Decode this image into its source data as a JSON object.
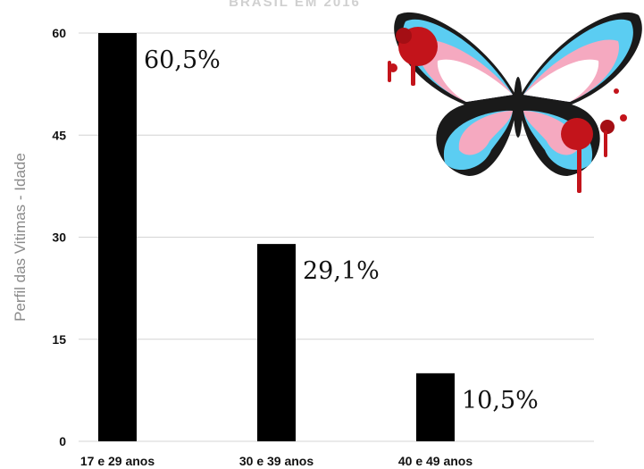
{
  "chart_data": {
    "type": "bar",
    "title": "BRASIL EM 2016",
    "ylabel": "Perfil das Vitimas - Idade",
    "xlabel": "",
    "categories": [
      "17 e 29 anos",
      "30 e 39 anos",
      "40 e 49 anos"
    ],
    "values": [
      60,
      29,
      10
    ],
    "data_labels": [
      "60,5%",
      "29,1%",
      "10,5%"
    ],
    "ylim": [
      0,
      60
    ],
    "yticks": [
      0,
      15,
      30,
      45,
      60
    ],
    "grid": true,
    "bar_color": "#000000",
    "grid_color": "#d4d4d4"
  },
  "illustration": {
    "name": "butterfly-illustration",
    "colors": [
      "#5bcdf2",
      "#f5a9c0",
      "#ffffff",
      "#c3141b"
    ]
  }
}
